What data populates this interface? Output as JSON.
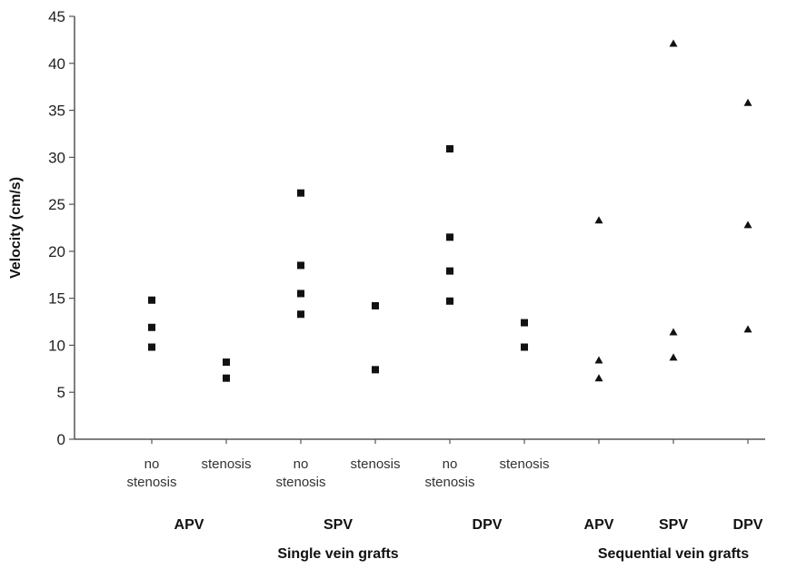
{
  "chart_data": {
    "type": "scatter",
    "ylabel": "Velocity (cm/s)",
    "ylim": [
      0,
      45
    ],
    "yticks": [
      0,
      5,
      10,
      15,
      20,
      25,
      30,
      35,
      40,
      45
    ],
    "grid": false,
    "categories": [
      {
        "label": [
          "no",
          "stenosis"
        ],
        "group": "APV",
        "section": "Single vein grafts",
        "marker": "square",
        "values": [
          14.8,
          11.9,
          9.8
        ]
      },
      {
        "label": [
          "stenosis"
        ],
        "group": "APV",
        "section": "Single vein grafts",
        "marker": "square",
        "values": [
          8.2,
          6.5
        ]
      },
      {
        "label": [
          "no",
          "stenosis"
        ],
        "group": "SPV",
        "section": "Single vein grafts",
        "marker": "square",
        "values": [
          26.2,
          18.5,
          15.5,
          13.3
        ]
      },
      {
        "label": [
          "stenosis"
        ],
        "group": "SPV",
        "section": "Single vein grafts",
        "marker": "square",
        "values": [
          14.2,
          7.4
        ]
      },
      {
        "label": [
          "no",
          "stenosis"
        ],
        "group": "DPV",
        "section": "Single vein grafts",
        "marker": "square",
        "values": [
          30.9,
          21.5,
          17.9,
          14.7
        ]
      },
      {
        "label": [
          "stenosis"
        ],
        "group": "DPV",
        "section": "Single vein grafts",
        "marker": "square",
        "values": [
          12.4,
          9.8
        ]
      },
      {
        "label": [],
        "group": "APV",
        "section": "Sequential vein grafts",
        "marker": "triangle",
        "values": [
          23.3,
          8.4,
          6.5
        ]
      },
      {
        "label": [],
        "group": "SPV",
        "section": "Sequential vein grafts",
        "marker": "triangle",
        "values": [
          42.1,
          11.4,
          8.7
        ]
      },
      {
        "label": [],
        "group": "DPV",
        "section": "Sequential vein grafts",
        "marker": "triangle",
        "values": [
          35.8,
          22.8,
          11.7
        ]
      }
    ],
    "groups": [
      {
        "label": "APV",
        "span": [
          0,
          1
        ]
      },
      {
        "label": "SPV",
        "span": [
          2,
          3
        ]
      },
      {
        "label": "DPV",
        "span": [
          4,
          5
        ]
      },
      {
        "label": "APV",
        "span": [
          6,
          6
        ]
      },
      {
        "label": "SPV",
        "span": [
          7,
          7
        ]
      },
      {
        "label": "DPV",
        "span": [
          8,
          8
        ]
      }
    ],
    "sections": [
      {
        "label": "Single vein grafts",
        "span": [
          2,
          3
        ]
      },
      {
        "label": "Sequential vein grafts",
        "span": [
          7,
          7
        ]
      }
    ]
  }
}
